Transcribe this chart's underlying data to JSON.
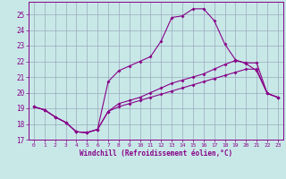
{
  "xlabel": "Windchill (Refroidissement éolien,°C)",
  "xlim": [
    -0.5,
    23.5
  ],
  "ylim": [
    17,
    25.8
  ],
  "yticks": [
    17,
    18,
    19,
    20,
    21,
    22,
    23,
    24,
    25
  ],
  "xticks": [
    0,
    1,
    2,
    3,
    4,
    5,
    6,
    7,
    8,
    9,
    10,
    11,
    12,
    13,
    14,
    15,
    16,
    17,
    18,
    19,
    20,
    21,
    22,
    23
  ],
  "bg_color": "#c8e8e8",
  "line_color": "#880088",
  "grid_color": "#99aabb",
  "line1_x": [
    0,
    1,
    2,
    3,
    4,
    5,
    6,
    7,
    8,
    9,
    10,
    11,
    12,
    13,
    14,
    15,
    16,
    17,
    18,
    19,
    20,
    21,
    22,
    23
  ],
  "line1_y": [
    19.1,
    18.9,
    18.45,
    18.1,
    17.5,
    17.45,
    17.65,
    20.7,
    21.4,
    21.7,
    22.0,
    22.3,
    23.3,
    24.8,
    24.9,
    25.35,
    25.35,
    24.6,
    23.1,
    22.1,
    21.85,
    21.4,
    19.95,
    19.7
  ],
  "line2_x": [
    0,
    1,
    2,
    3,
    4,
    5,
    6,
    7,
    8,
    9,
    10,
    11,
    12,
    13,
    14,
    15,
    16,
    17,
    18,
    19,
    20,
    21,
    22,
    23
  ],
  "line2_y": [
    19.1,
    18.9,
    18.45,
    18.1,
    17.5,
    17.45,
    17.65,
    18.8,
    19.3,
    19.5,
    19.7,
    20.0,
    20.3,
    20.6,
    20.8,
    21.0,
    21.2,
    21.5,
    21.8,
    22.05,
    21.9,
    21.9,
    19.95,
    19.7
  ],
  "line3_x": [
    0,
    1,
    2,
    3,
    4,
    5,
    6,
    7,
    8,
    9,
    10,
    11,
    12,
    13,
    14,
    15,
    16,
    17,
    18,
    19,
    20,
    21,
    22,
    23
  ],
  "line3_y": [
    19.1,
    18.9,
    18.45,
    18.1,
    17.5,
    17.45,
    17.65,
    18.8,
    19.1,
    19.3,
    19.5,
    19.7,
    19.9,
    20.1,
    20.3,
    20.5,
    20.7,
    20.9,
    21.1,
    21.3,
    21.5,
    21.5,
    19.95,
    19.7
  ]
}
